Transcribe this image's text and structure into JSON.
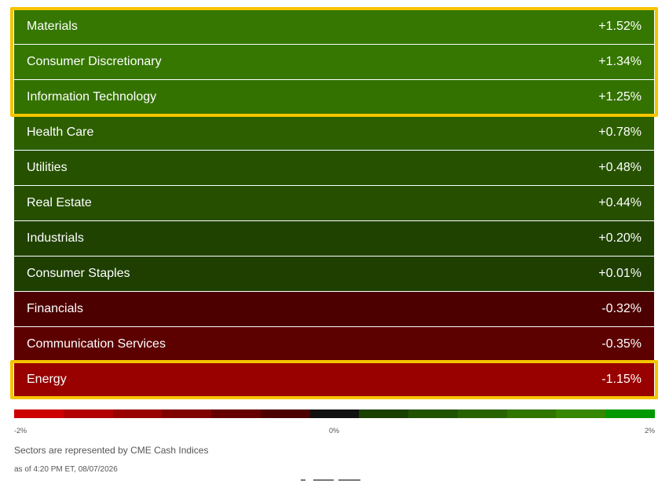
{
  "chart_data": {
    "type": "heatmap",
    "sectors": [
      {
        "name": "Materials",
        "label": "+1.52%",
        "value": 1.52,
        "color": "#357700"
      },
      {
        "name": "Consumer Discretionary",
        "label": "+1.34%",
        "value": 1.34,
        "color": "#357700"
      },
      {
        "name": "Information Technology",
        "label": "+1.25%",
        "value": 1.25,
        "color": "#347200"
      },
      {
        "name": "Health Care",
        "label": "+0.78%",
        "value": 0.78,
        "color": "#2d5f00"
      },
      {
        "name": "Utilities",
        "label": "+0.48%",
        "value": 0.48,
        "color": "#265200"
      },
      {
        "name": "Real Estate",
        "label": "+0.44%",
        "value": 0.44,
        "color": "#264f00"
      },
      {
        "name": "Industrials",
        "label": "+0.20%",
        "value": 0.2,
        "color": "#1f4200"
      },
      {
        "name": "Consumer Staples",
        "label": "+0.01%",
        "value": 0.01,
        "color": "#1e3f00"
      },
      {
        "name": "Financials",
        "label": "-0.32%",
        "value": -0.32,
        "color": "#4d0000"
      },
      {
        "name": "Communication Services",
        "label": "-0.35%",
        "value": -0.35,
        "color": "#5c0000"
      },
      {
        "name": "Energy",
        "label": "-1.15%",
        "value": -1.15,
        "color": "#990000"
      }
    ],
    "highlighted": [
      "Materials",
      "Consumer Discretionary",
      "Information Technology",
      "Energy"
    ],
    "highlight_color": "#f5c400",
    "scale": {
      "min_label": "-2%",
      "mid_label": "0%",
      "max_label": "2%",
      "min": -2,
      "max": 2,
      "colors": [
        "#cc0000",
        "#b20000",
        "#990000",
        "#800000",
        "#660000",
        "#4d0000",
        "#111111",
        "#1a4000",
        "#215200",
        "#286300",
        "#2f7500",
        "#368800",
        "#009900"
      ]
    }
  },
  "footer": {
    "note": "Sectors are represented by CME Cash Indices",
    "as_of": "as of 4:20 PM ET, 08/07/2026"
  }
}
